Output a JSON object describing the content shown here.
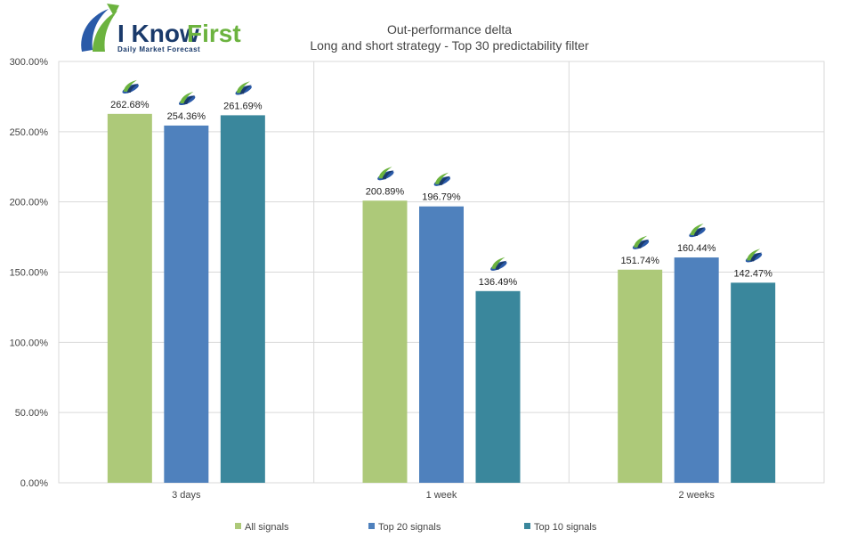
{
  "logo": {
    "word1": "I Know",
    "word2": "First",
    "tagline": "Daily Market Forecast"
  },
  "chart_data": {
    "type": "bar",
    "title": "Out-performance delta",
    "subtitle": "Long and short strategy - Top 30 predictability filter",
    "categories": [
      "3 days",
      "1 week",
      "2 weeks"
    ],
    "series": [
      {
        "name": "All signals",
        "color": "#adc979",
        "values": [
          262.68,
          200.89,
          151.74
        ],
        "labels": [
          "262.68%",
          "200.89%",
          "151.74%"
        ]
      },
      {
        "name": "Top 20 signals",
        "color": "#4f81bd",
        "values": [
          254.36,
          196.79,
          160.44
        ],
        "labels": [
          "254.36%",
          "196.79%",
          "160.44%"
        ]
      },
      {
        "name": "Top 10 signals",
        "color": "#3a879c",
        "values": [
          261.69,
          136.49,
          142.47
        ],
        "labels": [
          "261.69%",
          "136.49%",
          "142.47%"
        ]
      }
    ],
    "ylim": [
      0,
      300
    ],
    "yticks": [
      "0.00%",
      "50.00%",
      "100.00%",
      "150.00%",
      "200.00%",
      "250.00%",
      "300.00%"
    ],
    "grid": true,
    "legend_position": "bottom"
  }
}
